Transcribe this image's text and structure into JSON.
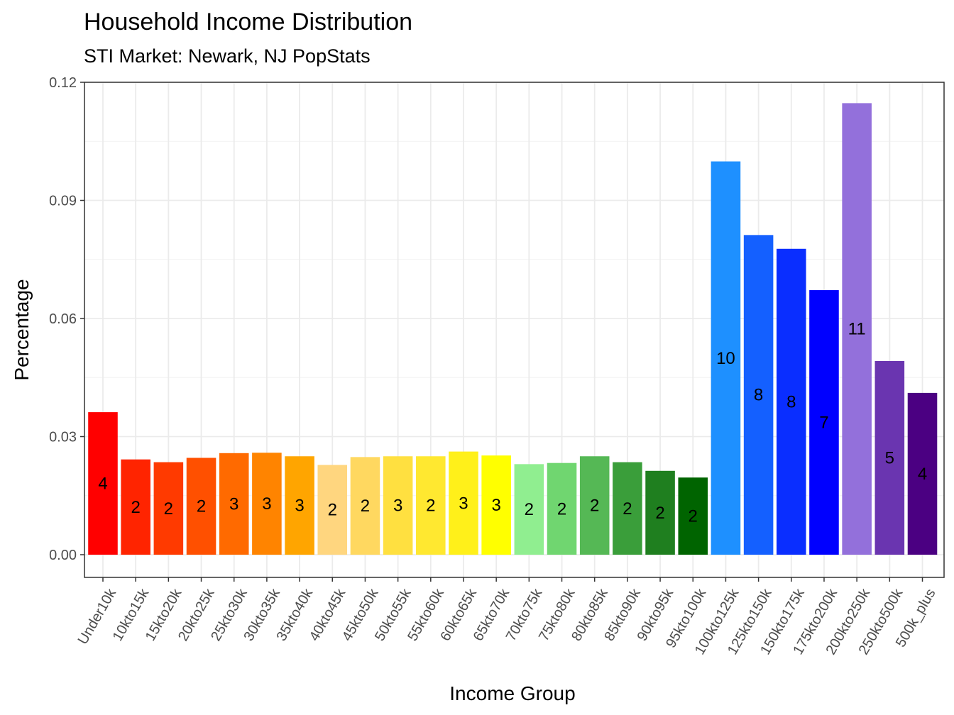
{
  "chart_data": {
    "type": "bar",
    "title": "Household Income Distribution",
    "subtitle": "STI Market: Newark, NJ PopStats",
    "xlabel": "Income Group",
    "ylabel": "Percentage",
    "ylim": [
      0,
      0.12
    ],
    "y_ticks": [
      "0.00",
      "0.03",
      "0.06",
      "0.09",
      "0.12"
    ],
    "y_tick_values": [
      0,
      0.03,
      0.06,
      0.09,
      0.12
    ],
    "grid": true,
    "legend": "none",
    "categories": [
      "Under10k",
      "10kto15k",
      "15kto20k",
      "20kto25k",
      "25kto30k",
      "30kto35k",
      "35kto40k",
      "40kto45k",
      "45kto50k",
      "50kto55k",
      "55kto60k",
      "60kto65k",
      "65kto70k",
      "70kto75k",
      "75kto80k",
      "80kto85k",
      "85kto90k",
      "90kto95k",
      "95kto100k",
      "100kto125k",
      "125kto150k",
      "150kto175k",
      "175kto200k",
      "200kto250k",
      "250kto500k",
      "500k_plus"
    ],
    "values": [
      0.0362,
      0.0242,
      0.0235,
      0.0246,
      0.0258,
      0.0259,
      0.025,
      0.0228,
      0.0248,
      0.025,
      0.025,
      0.0262,
      0.0252,
      0.023,
      0.0233,
      0.025,
      0.0235,
      0.0213,
      0.0196,
      0.0999,
      0.0812,
      0.0777,
      0.0672,
      0.1147,
      0.0492,
      0.0411
    ],
    "data_labels": [
      "4",
      "2",
      "2",
      "2",
      "3",
      "3",
      "3",
      "2",
      "2",
      "3",
      "2",
      "3",
      "3",
      "2",
      "2",
      "2",
      "2",
      "2",
      "2",
      "10",
      "8",
      "8",
      "7",
      "11",
      "5",
      "4"
    ],
    "colors": [
      "#FF0000",
      "#FF2400",
      "#FF3A00",
      "#FF5000",
      "#FF6A00",
      "#FF8400",
      "#FFA500",
      "#FFD67F",
      "#FFD860",
      "#FFE040",
      "#FFE830",
      "#FFF01A",
      "#FFFF00",
      "#90EE90",
      "#70D670",
      "#55B855",
      "#3A9E3A",
      "#1F7F1F",
      "#006400",
      "#1E90FF",
      "#1460FF",
      "#0A2EFF",
      "#0000FF",
      "#9370DB",
      "#6A35B0",
      "#4B0082"
    ]
  }
}
